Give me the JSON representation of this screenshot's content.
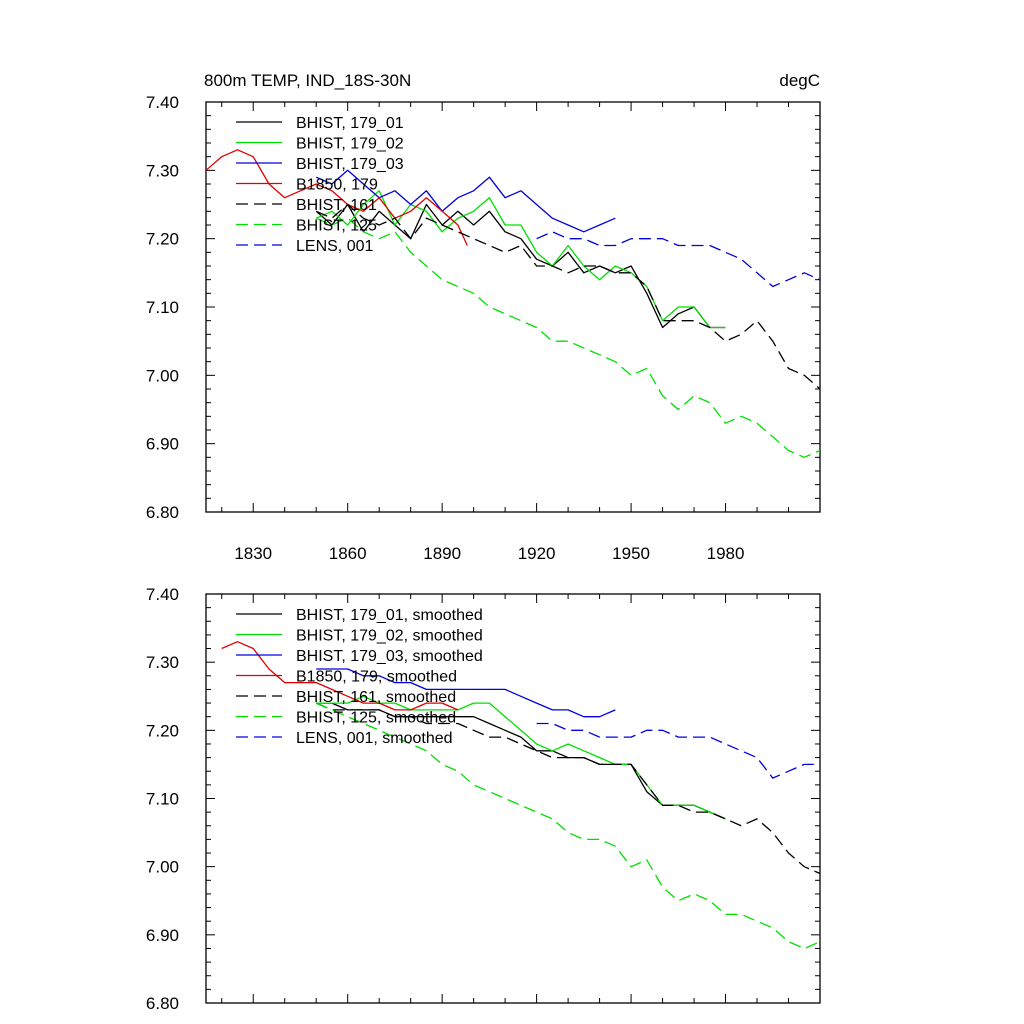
{
  "chart_data": [
    {
      "type": "line",
      "title": "800m TEMP, IND_18S-30N",
      "units": "degC",
      "xlabel": "",
      "ylabel": "",
      "xlim": [
        1815,
        2010
      ],
      "ylim": [
        6.8,
        7.4
      ],
      "xticks": [
        1830,
        1860,
        1890,
        1920,
        1950,
        1980
      ],
      "xtick_labels": [
        "1830",
        "1860",
        "1890",
        "1920",
        "1950",
        "1980"
      ],
      "yticks": [
        6.8,
        6.9,
        7.0,
        7.1,
        7.2,
        7.3,
        7.4
      ],
      "ytick_labels": [
        "6.80",
        "6.90",
        "7.00",
        "7.10",
        "7.20",
        "7.30",
        "7.40"
      ],
      "legend_position": "top-left",
      "series": [
        {
          "name": "BHIST, 179_01",
          "color": "#000000",
          "dash": "solid",
          "x": [
            1850,
            1855,
            1860,
            1865,
            1870,
            1875,
            1880,
            1885,
            1890,
            1895,
            1900,
            1905,
            1910,
            1915,
            1920,
            1925,
            1930,
            1935,
            1940,
            1945,
            1950,
            1955,
            1960,
            1965,
            1970,
            1975,
            1980
          ],
          "y": [
            7.24,
            7.22,
            7.25,
            7.21,
            7.24,
            7.22,
            7.2,
            7.25,
            7.22,
            7.24,
            7.22,
            7.24,
            7.21,
            7.2,
            7.17,
            7.16,
            7.18,
            7.15,
            7.16,
            7.15,
            7.16,
            7.12,
            7.07,
            7.09,
            7.1,
            7.07,
            7.07
          ]
        },
        {
          "name": "BHIST, 179_02",
          "color": "#00e000",
          "dash": "solid",
          "x": [
            1850,
            1855,
            1860,
            1865,
            1870,
            1875,
            1880,
            1885,
            1890,
            1895,
            1900,
            1905,
            1910,
            1915,
            1920,
            1925,
            1930,
            1935,
            1940,
            1945,
            1950,
            1955,
            1960,
            1965,
            1970,
            1975,
            1980
          ],
          "y": [
            7.23,
            7.24,
            7.22,
            7.25,
            7.27,
            7.22,
            7.25,
            7.24,
            7.21,
            7.23,
            7.24,
            7.26,
            7.22,
            7.22,
            7.18,
            7.16,
            7.19,
            7.16,
            7.14,
            7.16,
            7.15,
            7.13,
            7.08,
            7.1,
            7.1,
            7.07,
            7.07
          ]
        },
        {
          "name": "BHIST, 179_03",
          "color": "#0000e0",
          "dash": "solid",
          "x": [
            1850,
            1855,
            1860,
            1865,
            1870,
            1875,
            1880,
            1885,
            1890,
            1895,
            1900,
            1905,
            1910,
            1915,
            1920,
            1925,
            1930,
            1935,
            1940,
            1945
          ],
          "y": [
            7.29,
            7.28,
            7.3,
            7.28,
            7.26,
            7.27,
            7.25,
            7.27,
            7.24,
            7.26,
            7.27,
            7.29,
            7.26,
            7.27,
            7.25,
            7.23,
            7.22,
            7.21,
            7.22,
            7.23
          ]
        },
        {
          "name": "B1850, 179",
          "color": "#e00000",
          "dash": "solid",
          "x": [
            1815,
            1820,
            1825,
            1830,
            1835,
            1840,
            1845,
            1850,
            1855,
            1860,
            1865,
            1870,
            1875,
            1880,
            1885,
            1890,
            1895,
            1898
          ],
          "y": [
            7.3,
            7.32,
            7.33,
            7.32,
            7.28,
            7.26,
            7.27,
            7.28,
            7.27,
            7.25,
            7.24,
            7.26,
            7.23,
            7.24,
            7.26,
            7.24,
            7.22,
            7.19
          ]
        },
        {
          "name": "BHIST, 161",
          "color": "#000000",
          "dash": "dashed",
          "x": [
            1850,
            1855,
            1860,
            1865,
            1870,
            1875,
            1880,
            1885,
            1890,
            1895,
            1900,
            1905,
            1910,
            1915,
            1920,
            1925,
            1930,
            1935,
            1940,
            1945,
            1950,
            1955,
            1960,
            1965,
            1970,
            1975,
            1980,
            1985,
            1990,
            1995,
            2000,
            2005,
            2010
          ],
          "y": [
            7.24,
            7.23,
            7.25,
            7.23,
            7.22,
            7.23,
            7.2,
            7.23,
            7.22,
            7.21,
            7.2,
            7.19,
            7.18,
            7.19,
            7.16,
            7.16,
            7.15,
            7.16,
            7.16,
            7.15,
            7.15,
            7.13,
            7.08,
            7.08,
            7.08,
            7.07,
            7.05,
            7.06,
            7.08,
            7.05,
            7.01,
            7.0,
            6.98
          ]
        },
        {
          "name": "BHIST, 125",
          "color": "#00e000",
          "dash": "dashed",
          "x": [
            1850,
            1855,
            1860,
            1865,
            1870,
            1875,
            1880,
            1885,
            1890,
            1895,
            1900,
            1905,
            1910,
            1915,
            1920,
            1925,
            1930,
            1935,
            1940,
            1945,
            1950,
            1955,
            1960,
            1965,
            1970,
            1975,
            1980,
            1985,
            1990,
            1995,
            2000,
            2005,
            2010
          ],
          "y": [
            7.23,
            7.22,
            7.23,
            7.21,
            7.2,
            7.21,
            7.18,
            7.16,
            7.14,
            7.13,
            7.12,
            7.1,
            7.09,
            7.08,
            7.07,
            7.05,
            7.05,
            7.04,
            7.03,
            7.02,
            7.0,
            7.01,
            6.97,
            6.95,
            6.97,
            6.96,
            6.93,
            6.94,
            6.93,
            6.91,
            6.89,
            6.88,
            6.89
          ]
        },
        {
          "name": "LENS, 001",
          "color": "#0000e0",
          "dash": "dashed",
          "x": [
            1920,
            1925,
            1930,
            1935,
            1940,
            1945,
            1950,
            1955,
            1960,
            1965,
            1970,
            1975,
            1980,
            1985,
            1990,
            1995,
            2000,
            2005,
            2010
          ],
          "y": [
            7.2,
            7.21,
            7.2,
            7.2,
            7.19,
            7.19,
            7.2,
            7.2,
            7.2,
            7.19,
            7.19,
            7.19,
            7.18,
            7.17,
            7.15,
            7.13,
            7.14,
            7.15,
            7.14
          ]
        }
      ]
    },
    {
      "type": "line",
      "title": "",
      "xlabel": "",
      "ylabel": "",
      "xlim": [
        1815,
        2010
      ],
      "ylim": [
        6.8,
        7.4
      ],
      "xticks": [
        1830,
        1860,
        1890,
        1920,
        1950,
        1980
      ],
      "yticks": [
        6.8,
        6.9,
        7.0,
        7.1,
        7.2,
        7.3,
        7.4
      ],
      "ytick_labels": [
        "6.80",
        "6.90",
        "7.00",
        "7.10",
        "7.20",
        "7.30",
        "7.40"
      ],
      "legend_position": "top-left",
      "series": [
        {
          "name": "BHIST, 179_01, smoothed",
          "color": "#000000",
          "dash": "solid",
          "x": [
            1850,
            1855,
            1860,
            1865,
            1870,
            1875,
            1880,
            1885,
            1890,
            1895,
            1900,
            1905,
            1910,
            1915,
            1920,
            1925,
            1930,
            1935,
            1940,
            1945,
            1950,
            1955,
            1960,
            1965,
            1970,
            1975,
            1980
          ],
          "y": [
            7.24,
            7.24,
            7.23,
            7.23,
            7.23,
            7.22,
            7.22,
            7.22,
            7.22,
            7.22,
            7.22,
            7.21,
            7.2,
            7.19,
            7.17,
            7.17,
            7.16,
            7.16,
            7.15,
            7.15,
            7.15,
            7.11,
            7.09,
            7.09,
            7.09,
            7.08,
            7.07
          ]
        },
        {
          "name": "BHIST, 179_02, smoothed",
          "color": "#00e000",
          "dash": "solid",
          "x": [
            1850,
            1855,
            1860,
            1865,
            1870,
            1875,
            1880,
            1885,
            1890,
            1895,
            1900,
            1905,
            1910,
            1915,
            1920,
            1925,
            1930,
            1935,
            1940,
            1945,
            1950,
            1955,
            1960,
            1965,
            1970,
            1975,
            1980
          ],
          "y": [
            7.24,
            7.24,
            7.24,
            7.25,
            7.24,
            7.24,
            7.23,
            7.23,
            7.23,
            7.23,
            7.24,
            7.24,
            7.22,
            7.2,
            7.18,
            7.17,
            7.18,
            7.17,
            7.16,
            7.15,
            7.15,
            7.12,
            7.09,
            7.09,
            7.09,
            7.08,
            7.07
          ]
        },
        {
          "name": "BHIST, 179_03, smoothed",
          "color": "#0000e0",
          "dash": "solid",
          "x": [
            1850,
            1855,
            1860,
            1865,
            1870,
            1875,
            1880,
            1885,
            1890,
            1895,
            1900,
            1905,
            1910,
            1915,
            1920,
            1925,
            1930,
            1935,
            1940,
            1945
          ],
          "y": [
            7.29,
            7.29,
            7.29,
            7.28,
            7.28,
            7.27,
            7.27,
            7.26,
            7.26,
            7.26,
            7.26,
            7.26,
            7.26,
            7.25,
            7.24,
            7.23,
            7.23,
            7.22,
            7.22,
            7.23
          ]
        },
        {
          "name": "B1850, 179, smoothed",
          "color": "#e00000",
          "dash": "solid",
          "x": [
            1820,
            1825,
            1830,
            1835,
            1840,
            1845,
            1850,
            1855,
            1860,
            1865,
            1870,
            1875,
            1880,
            1885,
            1890,
            1895
          ],
          "y": [
            7.32,
            7.33,
            7.32,
            7.29,
            7.27,
            7.27,
            7.27,
            7.26,
            7.25,
            7.24,
            7.24,
            7.23,
            7.23,
            7.24,
            7.24,
            7.23
          ]
        },
        {
          "name": "BHIST, 161, smoothed",
          "color": "#000000",
          "dash": "dashed",
          "x": [
            1850,
            1855,
            1860,
            1865,
            1870,
            1875,
            1880,
            1885,
            1890,
            1895,
            1900,
            1905,
            1910,
            1915,
            1920,
            1925,
            1930,
            1935,
            1940,
            1945,
            1950,
            1955,
            1960,
            1965,
            1970,
            1975,
            1980,
            1985,
            1990,
            1995,
            2000,
            2005,
            2010
          ],
          "y": [
            7.24,
            7.23,
            7.23,
            7.23,
            7.23,
            7.22,
            7.22,
            7.21,
            7.21,
            7.21,
            7.2,
            7.19,
            7.19,
            7.18,
            7.17,
            7.16,
            7.16,
            7.16,
            7.15,
            7.15,
            7.15,
            7.12,
            7.09,
            7.09,
            7.08,
            7.08,
            7.07,
            7.06,
            7.07,
            7.05,
            7.02,
            7.0,
            6.99
          ]
        },
        {
          "name": "BHIST, 125, smoothed",
          "color": "#00e000",
          "dash": "dashed",
          "x": [
            1850,
            1855,
            1860,
            1865,
            1870,
            1875,
            1880,
            1885,
            1890,
            1895,
            1900,
            1905,
            1910,
            1915,
            1920,
            1925,
            1930,
            1935,
            1940,
            1945,
            1950,
            1955,
            1960,
            1965,
            1970,
            1975,
            1980,
            1985,
            1990,
            1995,
            2000,
            2005,
            2010
          ],
          "y": [
            7.24,
            7.23,
            7.22,
            7.21,
            7.2,
            7.19,
            7.18,
            7.17,
            7.15,
            7.14,
            7.12,
            7.11,
            7.1,
            7.09,
            7.08,
            7.07,
            7.05,
            7.04,
            7.04,
            7.03,
            7.0,
            7.01,
            6.97,
            6.95,
            6.96,
            6.95,
            6.93,
            6.93,
            6.92,
            6.91,
            6.89,
            6.88,
            6.89
          ]
        },
        {
          "name": "LENS, 001, smoothed",
          "color": "#0000e0",
          "dash": "dashed",
          "x": [
            1920,
            1925,
            1930,
            1935,
            1940,
            1945,
            1950,
            1955,
            1960,
            1965,
            1970,
            1975,
            1980,
            1985,
            1990,
            1995,
            2000,
            2005,
            2010
          ],
          "y": [
            7.21,
            7.21,
            7.2,
            7.2,
            7.19,
            7.19,
            7.19,
            7.2,
            7.2,
            7.19,
            7.19,
            7.19,
            7.18,
            7.17,
            7.16,
            7.13,
            7.14,
            7.15,
            7.15
          ]
        }
      ]
    }
  ]
}
